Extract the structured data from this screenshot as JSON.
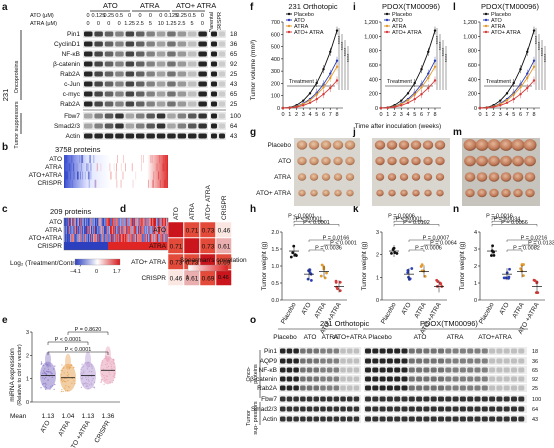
{
  "panels": {
    "a": "a",
    "b": "b",
    "c": "c",
    "d": "d",
    "e": "e",
    "f": "f",
    "g": "g",
    "h": "h",
    "i": "i",
    "j": "j",
    "k": "k",
    "l": "l",
    "m": "m",
    "n": "n",
    "o": "o"
  },
  "panel_a": {
    "group_headers": [
      "ATO",
      "ATRA",
      "ATO+ ATRA"
    ],
    "parental": "Parental",
    "crispr": "CRISPR",
    "ato_label": "ATO (μM)",
    "atra_label": "ATRA (μM)",
    "ato_doses": [
      "0",
      "0.125",
      "0.25",
      "0.5",
      "0",
      "0",
      "0",
      "0",
      "0.125",
      "0.25",
      "0.5",
      "0"
    ],
    "atra_doses": [
      "0",
      "0",
      "0",
      "0",
      "1.25",
      "2.5",
      "5",
      "10",
      "1.25",
      "2.5",
      "5",
      "0"
    ],
    "cell_line": "231",
    "oncoproteins_label": "Oncoproteins",
    "suppressors_label": "Tumor suppressors",
    "proteins": [
      "Pin1",
      "CyclinD1",
      "NF-κB",
      "β-catenin",
      "Rab2A",
      "c-Jun",
      "c-myc",
      "Rab2A",
      "Fbw7",
      "Smad2/3",
      "Actin"
    ],
    "kda": [
      "18",
      "36",
      "65",
      "92",
      "25",
      "43",
      "65",
      "25",
      "100",
      "64",
      "43"
    ]
  },
  "panel_b": {
    "title": "3758 proteins",
    "rows": [
      "ATO",
      "ATRA",
      "ATO+ATRA",
      "CRISPR"
    ]
  },
  "panel_c": {
    "title": "209 proteins",
    "rows": [
      "ATO",
      "ATRA",
      "ATO+ATRA",
      "CRISPR"
    ],
    "colorbar_label": "Log₂ (Treatment/Control)",
    "colorbar_min": "−4.1",
    "colorbar_mid": "0",
    "colorbar_max": "1.7"
  },
  "panel_d": {
    "labels": [
      "ATO",
      "ATRA",
      "ATO+ ATRA",
      "CRISPR"
    ],
    "matrix": [
      [
        "",
        "0.71",
        "0.73",
        "0.46"
      ],
      [
        "0.71",
        "",
        "0.73",
        "0.61"
      ],
      [
        "0.73",
        "0.73",
        "",
        "0.69"
      ],
      [
        "0.46",
        "0.61",
        "0.69",
        ""
      ]
    ],
    "legend_title": "Spearman's correlation",
    "legend_max": "1",
    "legend_min": "0.46"
  },
  "panel_e": {
    "ylabel": "miRNA expression (Relative to ctrl or vector)",
    "yticks": [
      "0",
      "1",
      "2",
      "3"
    ],
    "categories": [
      "ATO",
      "ATRA",
      "ATO +ATRA",
      "CRISPR"
    ],
    "means_label": "Mean",
    "means": [
      "1.13",
      "1.04",
      "1.13",
      "1.36"
    ],
    "pvals": [
      "P < 0.0001",
      "P < 0.0001",
      "P = 0.8620"
    ]
  },
  "panel_f": {
    "title": "231 Orthotopic",
    "ylabel": "Tumor volume (mm³)",
    "yticks": [
      "0",
      "100",
      "200",
      "300",
      "400",
      "500",
      "600",
      "700"
    ],
    "xticks": [
      "0",
      "1",
      "2",
      "3",
      "4",
      "5",
      "6",
      "7",
      "8"
    ],
    "legend": [
      "Placebo",
      "ATO",
      "ATRA",
      "ATO+ ATRA"
    ],
    "treatment": "Treatment"
  },
  "panel_i": {
    "title": "PDOX(TM00096)",
    "yticks": [
      "0",
      "200",
      "400",
      "600",
      "800",
      "1,000",
      "1,200"
    ],
    "xticks": [
      "0",
      "1",
      "2",
      "3",
      "4",
      "5",
      "6",
      "7",
      "8"
    ],
    "legend": [
      "Placebo",
      "ATO",
      "ATRA",
      "ATO+ ATRA"
    ],
    "treatment": "Treatment",
    "xlabel": "Time after inoculation (weeks)"
  },
  "panel_l": {
    "title": "PDOX(TM00096)",
    "yticks": [
      "0",
      "200",
      "400",
      "600",
      "800",
      "1,000",
      "1,200"
    ],
    "xticks": [
      "0",
      "1",
      "2",
      "3",
      "4",
      "5",
      "6",
      "7",
      "8"
    ],
    "legend": [
      "Placebo",
      "ATO",
      "ATRA",
      "ATO+ ATRA"
    ],
    "treatment": "Treatment"
  },
  "panel_g": {
    "rows": [
      "Placebo",
      "ATO",
      "ATRA",
      "ATO+ ATRA"
    ]
  },
  "panel_h": {
    "ylabel": "Tumor weight (g)",
    "yticks": [
      "0.0",
      "0.5",
      "1.0",
      "1.5",
      "2.0"
    ],
    "categories": [
      "Placebo",
      "ATO",
      "ATRA",
      "ATO +ATRA"
    ],
    "pvals": [
      "P < 0.0001",
      "P < 0.0001",
      "P < 0.0001",
      "P = 0.0166",
      "P < 0.0001",
      "P = 0.0036"
    ]
  },
  "panel_k": {
    "ylabel": "Tumor weight (g)",
    "yticks": [
      "0",
      "1",
      "2",
      "3"
    ],
    "categories": [
      "Placebo",
      "ATO",
      "ATRA",
      "ATO +ATRA"
    ],
    "pvals": [
      "P = 0.0006",
      "P < 0.0001",
      "P = 0.0192",
      "P = 0.0007",
      "P = 0.0064",
      "P = 0.0006"
    ]
  },
  "panel_n": {
    "ylabel": "Tumor weight (g)",
    "yticks": [
      "0",
      "1",
      "2",
      "3",
      "4"
    ],
    "categories": [
      "Placebo",
      "ATO",
      "ATRA",
      "ATO +ATRA"
    ],
    "pvals": [
      "P = 0.0016",
      "P = 0.0034",
      "P = 0.0056",
      "P = 0.0216",
      "P = 0.0133",
      "P = 0.0082"
    ]
  },
  "panel_o": {
    "group1": "231 Orthotopic",
    "group2": "PDOX(TM00096)",
    "subgroups": [
      "Placebo",
      "ATO",
      "ATRA",
      "ATO+ATRA"
    ],
    "proteins": [
      "Pin1",
      "AQP9",
      "NF-κB",
      "β-catenin",
      "Rab2A",
      "Fbw7",
      "Smad2/3",
      "Actin"
    ],
    "onco_label": "Onco- proteins",
    "supp_label": "Tumor sup- pressors",
    "kda": [
      "18",
      "36",
      "65",
      "92",
      "25",
      "100",
      "64",
      "43"
    ]
  },
  "colors": {
    "placebo": "#111111",
    "ato": "#2c3fb8",
    "atra": "#e39a2c",
    "ato_atra": "#d63a3a",
    "heat_pos": "#d7191c",
    "heat_neg": "#2b3fbf"
  }
}
